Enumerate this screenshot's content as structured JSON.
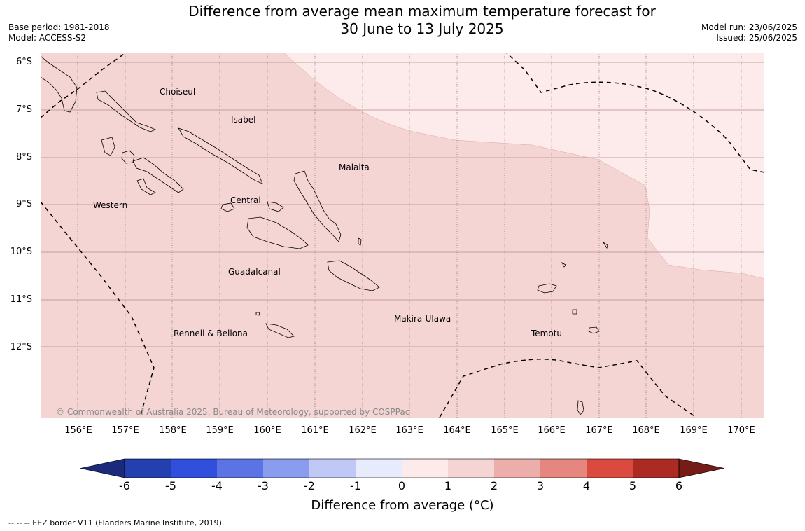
{
  "title": {
    "line1": "Difference from average mean maximum temperature forecast for",
    "line2": "30 June to 13 July 2025"
  },
  "meta": {
    "base_period": "Base period: 1981-2018",
    "model": "Model: ACCESS-S2",
    "model_run": "Model run: 23/06/2025",
    "issued": "Issued: 25/06/2025"
  },
  "map": {
    "latitude_labels": [
      "6°S",
      "7°S",
      "8°S",
      "9°S",
      "10°S",
      "11°S",
      "12°S"
    ],
    "longitude_labels": [
      "156°E",
      "157°E",
      "158°E",
      "159°E",
      "160°E",
      "161°E",
      "162°E",
      "163°E",
      "164°E",
      "165°E",
      "166°E",
      "167°E",
      "168°E",
      "169°E",
      "170°E"
    ],
    "places": [
      {
        "name": "Choiseul"
      },
      {
        "name": "Isabel"
      },
      {
        "name": "Malaita"
      },
      {
        "name": "Western"
      },
      {
        "name": "Central"
      },
      {
        "name": "Guadalcanal"
      },
      {
        "name": "Makira-Ulawa"
      },
      {
        "name": "Rennell & Bellona"
      },
      {
        "name": "Temotu"
      }
    ],
    "copyright": "© Commonwealth of Australia 2025, Bureau of Meteorology, supported by COSPPac",
    "fill_colors": {
      "band_1_to_2": "#f4d5d3",
      "band_0_to_1": "#fcebea"
    }
  },
  "colorbar": {
    "ticks": [
      "-6",
      "-5",
      "-4",
      "-3",
      "-2",
      "-1",
      "0",
      "1",
      "2",
      "3",
      "4",
      "5",
      "6"
    ],
    "colors": [
      "#1b2a7a",
      "#2440b0",
      "#2f4fdc",
      "#5b73e4",
      "#8a9cee",
      "#c0c8f6",
      "#e8ebfc",
      "#fcebea",
      "#f4d5d3",
      "#ecaeaa",
      "#e6877f",
      "#db4a3f",
      "#ab2a22",
      "#761c16"
    ],
    "label": "Difference from average (°C)"
  },
  "footnote": "--  --  -- EEZ border V11 (Flanders Marine Institute, 2019)."
}
